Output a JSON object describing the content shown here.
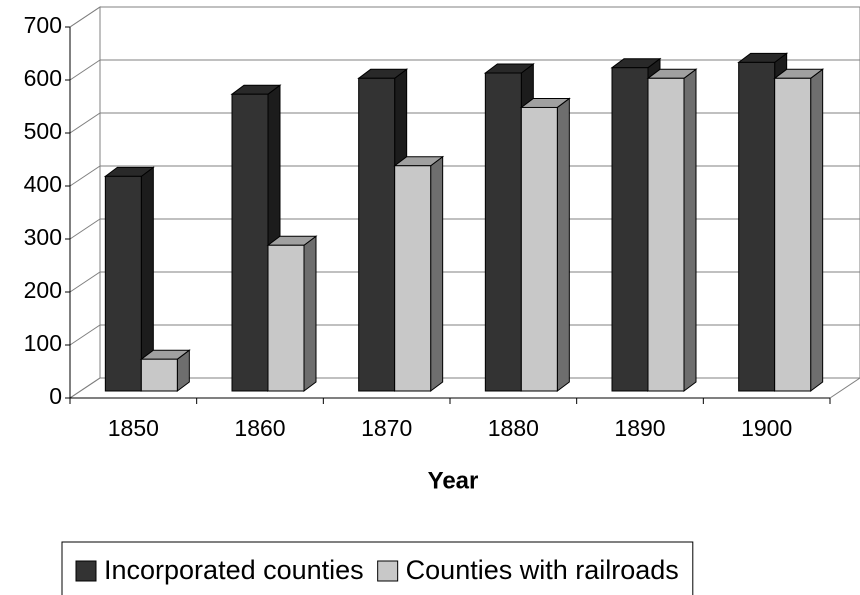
{
  "chart_data": {
    "type": "bar",
    "categories": [
      "1850",
      "1860",
      "1870",
      "1880",
      "1890",
      "1900"
    ],
    "series": [
      {
        "name": "Incorporated counties",
        "color": "#333333",
        "values": [
          405,
          560,
          590,
          600,
          610,
          620
        ]
      },
      {
        "name": "Counties with railroads",
        "color": "#c8c8c8",
        "values": [
          60,
          275,
          425,
          535,
          590,
          590
        ]
      }
    ],
    "xlabel": "Year",
    "ylim": [
      0,
      700
    ],
    "yticks": [
      0,
      100,
      200,
      300,
      400,
      500,
      600,
      700
    ],
    "grid": true,
    "legend": "bottom"
  }
}
